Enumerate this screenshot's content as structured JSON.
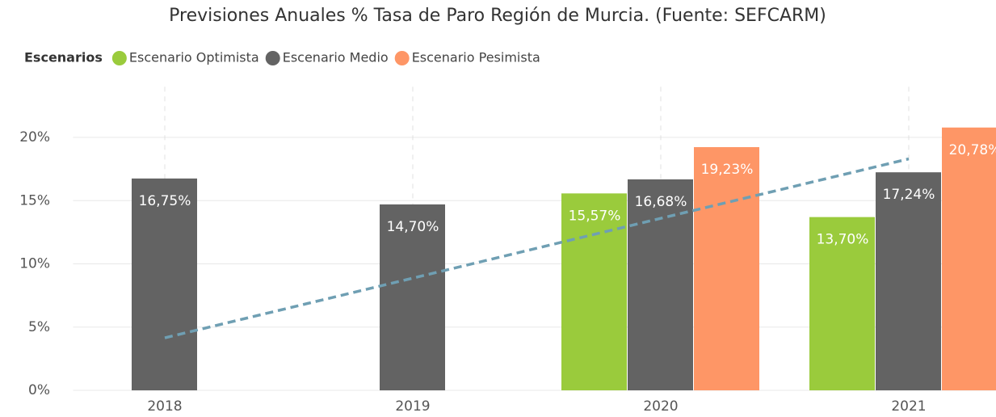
{
  "chart_data": {
    "type": "bar",
    "title": "Previsiones Anuales % Tasa de Paro Región de Murcia. (Fuente: SEFCARM)",
    "legend_title": "Escenarios",
    "categories": [
      "2018",
      "2019",
      "2020",
      "2021"
    ],
    "series": [
      {
        "name": "Escenario Optimista",
        "color": "#9acb3c",
        "values": [
          null,
          null,
          15.57,
          13.7
        ],
        "value_labels": [
          null,
          null,
          "15,57%",
          "13,70%"
        ]
      },
      {
        "name": "Escenario Medio",
        "color": "#636363",
        "values": [
          16.75,
          14.7,
          16.68,
          17.24
        ],
        "value_labels": [
          "16,75%",
          "14,70%",
          "16,68%",
          "17,24%"
        ]
      },
      {
        "name": "Escenario Pesimista",
        "color": "#fe9666",
        "values": [
          null,
          null,
          19.23,
          20.78
        ],
        "value_labels": [
          null,
          null,
          "19,23%",
          "20,78%"
        ]
      }
    ],
    "trend_line": {
      "color": "#6f9fb3",
      "values": [
        4.15,
        8.87,
        13.6,
        18.3
      ]
    },
    "ylim": [
      0,
      24
    ],
    "yticks": [
      {
        "value": 0,
        "label": "0%"
      },
      {
        "value": 5,
        "label": "5%"
      },
      {
        "value": 10,
        "label": "10%"
      },
      {
        "value": 15,
        "label": "15%"
      },
      {
        "value": 20,
        "label": "20%"
      }
    ],
    "grid": true,
    "legend_position": "top-left"
  }
}
